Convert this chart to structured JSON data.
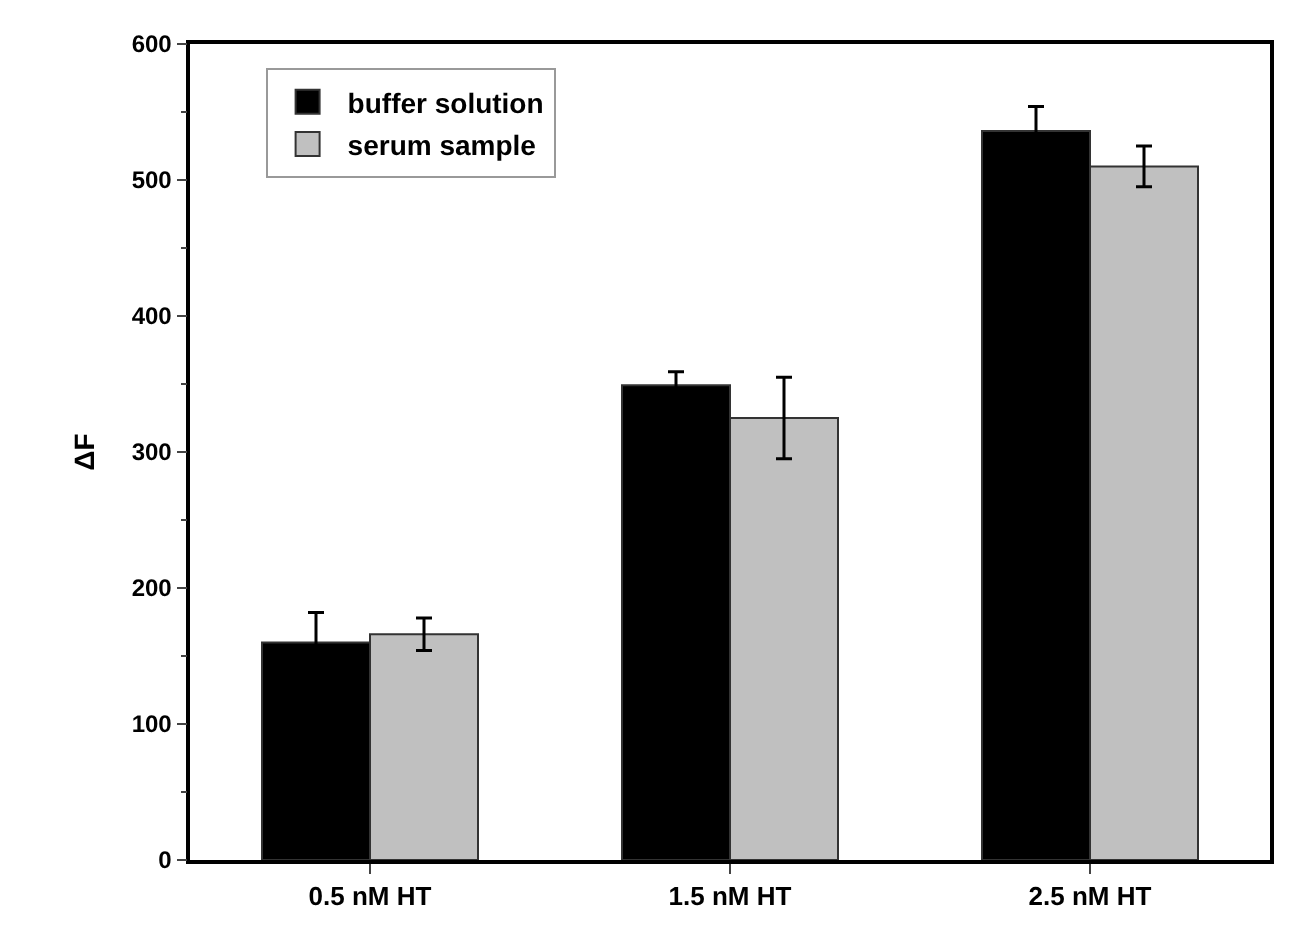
{
  "chart_data": {
    "type": "bar",
    "ylabel": "ΔF",
    "categories": [
      "0.5 nM HT",
      "1.5 nM HT",
      "2.5 nM HT"
    ],
    "series": [
      {
        "name": "buffer solution",
        "color": "#000000",
        "values": [
          160,
          349,
          536
        ],
        "errors": [
          22,
          10,
          18
        ]
      },
      {
        "name": "serum sample",
        "color": "#c0c0c0",
        "values": [
          166,
          325,
          510
        ],
        "errors": [
          12,
          30,
          15
        ]
      }
    ],
    "ylim": [
      0,
      600
    ],
    "yticks": [
      0,
      100,
      200,
      300,
      400,
      500,
      600
    ],
    "legend": "top left"
  }
}
